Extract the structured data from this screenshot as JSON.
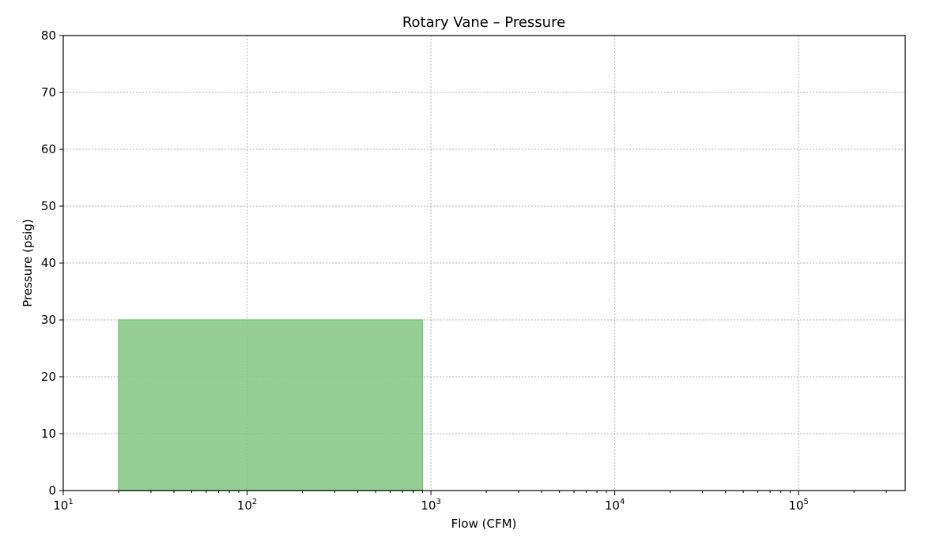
{
  "chart_data": {
    "type": "area",
    "title": "Rotary Vane – Pressure",
    "xlabel": "Flow (CFM)",
    "ylabel": "Pressure (psig)",
    "x_scale": "log",
    "xlim": [
      10,
      380000
    ],
    "ylim": [
      0,
      80
    ],
    "x_major_ticks": [
      {
        "value": 10,
        "base": "10",
        "exp": "1"
      },
      {
        "value": 100,
        "base": "10",
        "exp": "2"
      },
      {
        "value": 1000,
        "base": "10",
        "exp": "3"
      },
      {
        "value": 10000,
        "base": "10",
        "exp": "4"
      },
      {
        "value": 100000,
        "base": "10",
        "exp": "5"
      }
    ],
    "y_ticks": [
      0,
      10,
      20,
      30,
      40,
      50,
      60,
      70,
      80
    ],
    "grid": true,
    "series": [
      {
        "x_range": [
          20,
          900
        ],
        "y_range": [
          0,
          30
        ],
        "color": "#7ec47e"
      }
    ]
  }
}
